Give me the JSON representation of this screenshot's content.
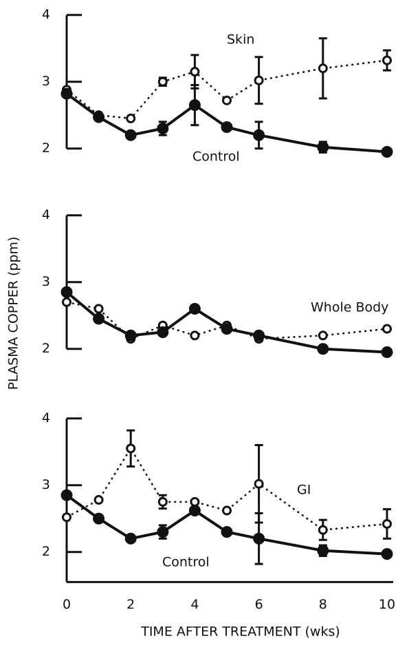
{
  "chart_data": [
    {
      "type": "line",
      "x": [
        0,
        1,
        2,
        3,
        4,
        5,
        6,
        8,
        10
      ],
      "xlim": [
        0,
        10.3
      ],
      "ylim": [
        1.85,
        4.1
      ],
      "yticks": [
        2,
        3,
        4
      ],
      "series": [
        {
          "name": "Skin",
          "color": "#111111",
          "dash": true,
          "values": [
            2.88,
            2.5,
            2.45,
            3.0,
            3.15,
            2.72,
            3.02,
            3.2,
            3.32
          ],
          "errors": [
            null,
            null,
            null,
            0.06,
            0.25,
            null,
            0.35,
            0.45,
            0.15
          ]
        },
        {
          "name": "Control",
          "color": "#111111",
          "dash": false,
          "values": [
            2.82,
            2.47,
            2.2,
            2.3,
            2.65,
            2.32,
            2.2,
            2.02,
            1.95
          ],
          "errors": [
            null,
            null,
            null,
            0.1,
            0.3,
            null,
            0.2,
            0.08,
            null
          ]
        }
      ]
    },
    {
      "type": "line",
      "x": [
        0,
        1,
        2,
        3,
        4,
        5,
        6,
        8,
        10
      ],
      "xlim": [
        0,
        10.3
      ],
      "ylim": [
        1.85,
        4.1
      ],
      "yticks": [
        2,
        3,
        4
      ],
      "ylabel": "PLASMA COPPER (ppm)",
      "series": [
        {
          "name": "Whole Body",
          "color": "#111111",
          "dash": true,
          "values": [
            2.7,
            2.6,
            2.15,
            2.35,
            2.2,
            2.35,
            2.15,
            2.2,
            2.3
          ],
          "errors": [
            null,
            null,
            null,
            null,
            null,
            null,
            null,
            null,
            null
          ]
        },
        {
          "name": null,
          "color": "#111111",
          "dash": false,
          "values": [
            2.85,
            2.45,
            2.2,
            2.25,
            2.6,
            2.3,
            2.2,
            2.0,
            1.95
          ],
          "errors": [
            null,
            null,
            null,
            null,
            null,
            null,
            null,
            null,
            null
          ]
        }
      ]
    },
    {
      "type": "line",
      "x": [
        0,
        1,
        2,
        3,
        4,
        5,
        6,
        8,
        10
      ],
      "xlim": [
        0,
        10.3
      ],
      "ylim": [
        1.55,
        4.1
      ],
      "yticks": [
        2,
        3,
        4
      ],
      "xticks": [
        0,
        2,
        4,
        6,
        8,
        10
      ],
      "xlabel": "TIME AFTER TREATMENT (wks)",
      "series": [
        {
          "name": "GI",
          "color": "#111111",
          "dash": true,
          "values": [
            2.52,
            2.78,
            3.55,
            2.75,
            2.75,
            2.62,
            3.02,
            2.33,
            2.42
          ],
          "errors": [
            null,
            null,
            0.27,
            0.1,
            null,
            null,
            0.58,
            0.15,
            0.22
          ]
        },
        {
          "name": "Control",
          "color": "#111111",
          "dash": false,
          "values": [
            2.85,
            2.5,
            2.2,
            2.3,
            2.62,
            2.3,
            2.2,
            2.02,
            1.97
          ],
          "errors": [
            null,
            null,
            null,
            0.1,
            null,
            null,
            0.38,
            0.08,
            null
          ]
        }
      ]
    }
  ]
}
